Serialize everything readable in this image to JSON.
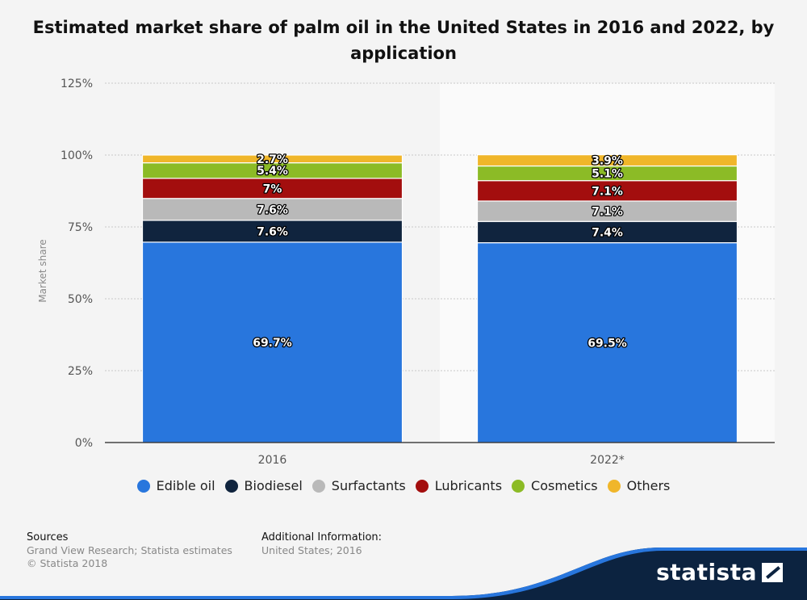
{
  "title": "Estimated market share of palm oil in the United States in 2016 and 2022, by application",
  "chart_data": {
    "type": "bar",
    "stacked": true,
    "categories": [
      "2016",
      "2022*"
    ],
    "ylabel": "Market share",
    "ylim": [
      0,
      125
    ],
    "yticks": [
      "0%",
      "25%",
      "50%",
      "75%",
      "100%",
      "125%"
    ],
    "grid": true,
    "legend_position": "bottom",
    "series": [
      {
        "name": "Edible oil",
        "color": "#2876dd",
        "values": [
          69.7,
          69.5
        ],
        "labels": [
          "69.7%",
          "69.5%"
        ]
      },
      {
        "name": "Biodiesel",
        "color": "#10243e",
        "values": [
          7.6,
          7.4
        ],
        "labels": [
          "7.6%",
          "7.4%"
        ]
      },
      {
        "name": "Surfactants",
        "color": "#b9b9b9",
        "values": [
          7.6,
          7.1
        ],
        "labels": [
          "7.6%",
          "7.1%"
        ]
      },
      {
        "name": "Lubricants",
        "color": "#a30e0e",
        "values": [
          7,
          7.1
        ],
        "labels": [
          "7%",
          "7.1%"
        ]
      },
      {
        "name": "Cosmetics",
        "color": "#8cbb26",
        "values": [
          5.4,
          5.1
        ],
        "labels": [
          "5.4%",
          "5.1%"
        ]
      },
      {
        "name": "Others",
        "color": "#f0b62a",
        "values": [
          2.7,
          3.9
        ],
        "labels": [
          "2.7%",
          "3.9%"
        ]
      }
    ]
  },
  "footer": {
    "sources_heading": "Sources",
    "sources_text": "Grand View Research; Statista estimates",
    "copyright": "© Statista 2018",
    "additional_heading": "Additional Information:",
    "additional_text": "United States; 2016"
  },
  "brand": "statista"
}
